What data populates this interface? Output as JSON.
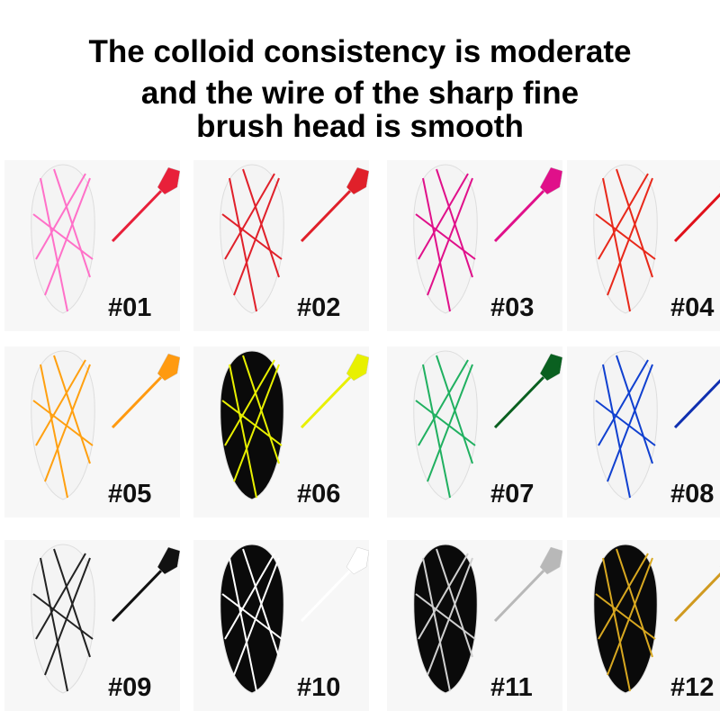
{
  "title_lines": [
    "The colloid consistency is moderate",
    "and the wire of the sharp fine",
    "brush head is smooth"
  ],
  "items": [
    {
      "label": "#01",
      "line_color": "#ff70c8",
      "brush_color": "#e8203a",
      "nail_color": "#f4f4f4"
    },
    {
      "label": "#02",
      "line_color": "#e0202a",
      "brush_color": "#e0202a",
      "nail_color": "#f4f4f4"
    },
    {
      "label": "#03",
      "line_color": "#e0108a",
      "brush_color": "#e0108a",
      "nail_color": "#f4f4f4"
    },
    {
      "label": "#04",
      "line_color": "#e8281a",
      "brush_color": "#e0101a",
      "nail_color": "#f4f4f4"
    },
    {
      "label": "#05",
      "line_color": "#ffa010",
      "brush_color": "#ff9a10",
      "nail_color": "#f4f4f4"
    },
    {
      "label": "#06",
      "line_color": "#e8f000",
      "brush_color": "#e8f000",
      "nail_color": "#0a0a0a"
    },
    {
      "label": "#07",
      "line_color": "#20b060",
      "brush_color": "#0a6020",
      "nail_color": "#f4f4f4"
    },
    {
      "label": "#08",
      "line_color": "#1040d0",
      "brush_color": "#1030b0",
      "nail_color": "#f4f4f4"
    },
    {
      "label": "#09",
      "line_color": "#222222",
      "brush_color": "#111111",
      "nail_color": "#f4f4f4"
    },
    {
      "label": "#10",
      "line_color": "#ffffff",
      "brush_color": "#ffffff",
      "nail_color": "#0a0a0a"
    },
    {
      "label": "#11",
      "line_color": "#d0d0d0",
      "brush_color": "#b8b8b8",
      "nail_color": "#0a0a0a"
    },
    {
      "label": "#12",
      "line_color": "#d8a820",
      "brush_color": "#d09a20",
      "nail_color": "#0a0a0a"
    }
  ]
}
